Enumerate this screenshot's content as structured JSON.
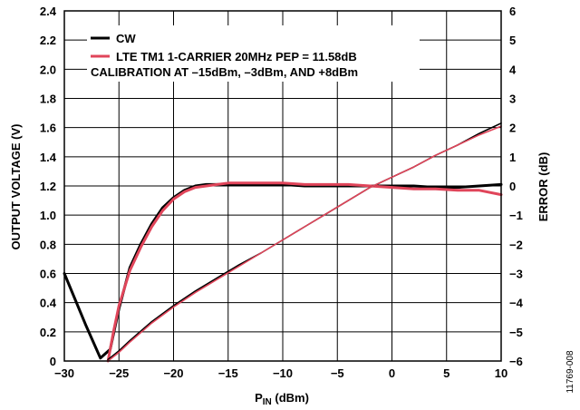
{
  "figure_id": "11769-008",
  "chart_data": {
    "type": "line",
    "xlabel_main": "P",
    "xlabel_sub": "IN",
    "xlabel_unit": " (dBm)",
    "ylabel_left": "OUTPUT VOLTAGE (V)",
    "ylabel_right": "ERROR (dB)",
    "xlim": [
      -30,
      10
    ],
    "ylim_left": [
      0,
      2.4
    ],
    "ylim_right": [
      -6,
      6
    ],
    "grid": true,
    "x_ticks": [
      -30,
      -25,
      -20,
      -15,
      -10,
      -5,
      0,
      5,
      10
    ],
    "x_tick_labels": [
      "−30",
      "−25",
      "−20",
      "−15",
      "−10",
      "−5",
      "0",
      "5",
      "10"
    ],
    "y_left_ticks": [
      0,
      0.2,
      0.4,
      0.6,
      0.8,
      1.0,
      1.2,
      1.4,
      1.6,
      1.8,
      2.0,
      2.2,
      2.4
    ],
    "y_left_tick_labels": [
      "0",
      "0.2",
      "0.4",
      "0.6",
      "0.8",
      "1.0",
      "1.2",
      "1.4",
      "1.6",
      "1.8",
      "2.0",
      "2.2",
      "2.4"
    ],
    "y_right_ticks": [
      -6,
      -5,
      -4,
      -3,
      -2,
      -1,
      0,
      1,
      2,
      3,
      4,
      5,
      6
    ],
    "y_right_tick_labels": [
      "−6",
      "−5",
      "−4",
      "−3",
      "−2",
      "−1",
      "0",
      "1",
      "2",
      "3",
      "4",
      "5",
      "6"
    ],
    "legend": {
      "placement": "top-left",
      "entries": [
        {
          "label": "CW",
          "color": "#000000"
        },
        {
          "label": "LTE TM1 1-CARRIER 20MHz PEP = 11.58dB",
          "color": "#e0455a"
        }
      ],
      "note": "CALIBRATION AT –15dBm, –3dBm, AND +8dBm"
    },
    "series": [
      {
        "name": "CW",
        "axis": "right",
        "role": "error",
        "color": "#000000",
        "x": [
          -30,
          -28,
          -26.7,
          -25.8,
          -25,
          -24,
          -23,
          -22,
          -21,
          -20,
          -19,
          -18,
          -17,
          -16,
          -15,
          -14,
          -12,
          -10,
          -8,
          -6,
          -4,
          -2,
          0,
          2,
          4,
          6,
          8,
          10
        ],
        "y": [
          -3.0,
          -4.8,
          -5.9,
          -5.6,
          -4.2,
          -2.8,
          -2.0,
          -1.3,
          -0.75,
          -0.4,
          -0.15,
          0.0,
          0.05,
          0.05,
          0.05,
          0.05,
          0.05,
          0.05,
          0.0,
          0.0,
          0.0,
          0.0,
          0.0,
          0.0,
          -0.05,
          -0.05,
          0.0,
          0.05
        ]
      },
      {
        "name": "LTE TM1 1-CARRIER 20MHz PEP = 11.58dB",
        "axis": "right",
        "role": "error",
        "color": "#e0455a",
        "x": [
          -26,
          -25.5,
          -25,
          -24,
          -23,
          -22,
          -21,
          -20,
          -19,
          -18,
          -17,
          -16,
          -15,
          -14,
          -12,
          -10,
          -8,
          -6,
          -4,
          -2,
          0,
          2,
          4,
          6,
          8,
          10
        ],
        "y": [
          -6.0,
          -5.0,
          -4.1,
          -2.9,
          -2.1,
          -1.4,
          -0.85,
          -0.45,
          -0.2,
          -0.05,
          0.0,
          0.05,
          0.1,
          0.1,
          0.1,
          0.1,
          0.05,
          0.05,
          0.05,
          0.0,
          -0.05,
          -0.1,
          -0.1,
          -0.15,
          -0.15,
          -0.3
        ]
      },
      {
        "name": "CW",
        "axis": "left",
        "role": "voltage",
        "color": "#000000",
        "x": [
          -26,
          -25,
          -24,
          -22,
          -20,
          -18,
          -16,
          -14,
          -12,
          -10,
          -8,
          -6,
          -4,
          -2,
          0,
          2,
          4,
          6,
          8,
          10
        ],
        "y": [
          0.01,
          0.07,
          0.14,
          0.27,
          0.38,
          0.48,
          0.57,
          0.66,
          0.74,
          0.83,
          0.92,
          1.01,
          1.1,
          1.19,
          1.26,
          1.33,
          1.41,
          1.48,
          1.56,
          1.63
        ]
      },
      {
        "name": "LTE TM1 1-CARRIER 20MHz PEP = 11.58dB",
        "axis": "left",
        "role": "voltage",
        "color": "#e0455a",
        "x": [
          -26,
          -25,
          -24,
          -22,
          -20,
          -18,
          -16,
          -14,
          -12,
          -10,
          -8,
          -6,
          -4,
          -2,
          0,
          2,
          4,
          6,
          8,
          10
        ],
        "y": [
          0.0,
          0.06,
          0.13,
          0.26,
          0.37,
          0.47,
          0.56,
          0.65,
          0.74,
          0.83,
          0.92,
          1.01,
          1.1,
          1.19,
          1.26,
          1.33,
          1.41,
          1.48,
          1.55,
          1.61
        ]
      }
    ]
  }
}
